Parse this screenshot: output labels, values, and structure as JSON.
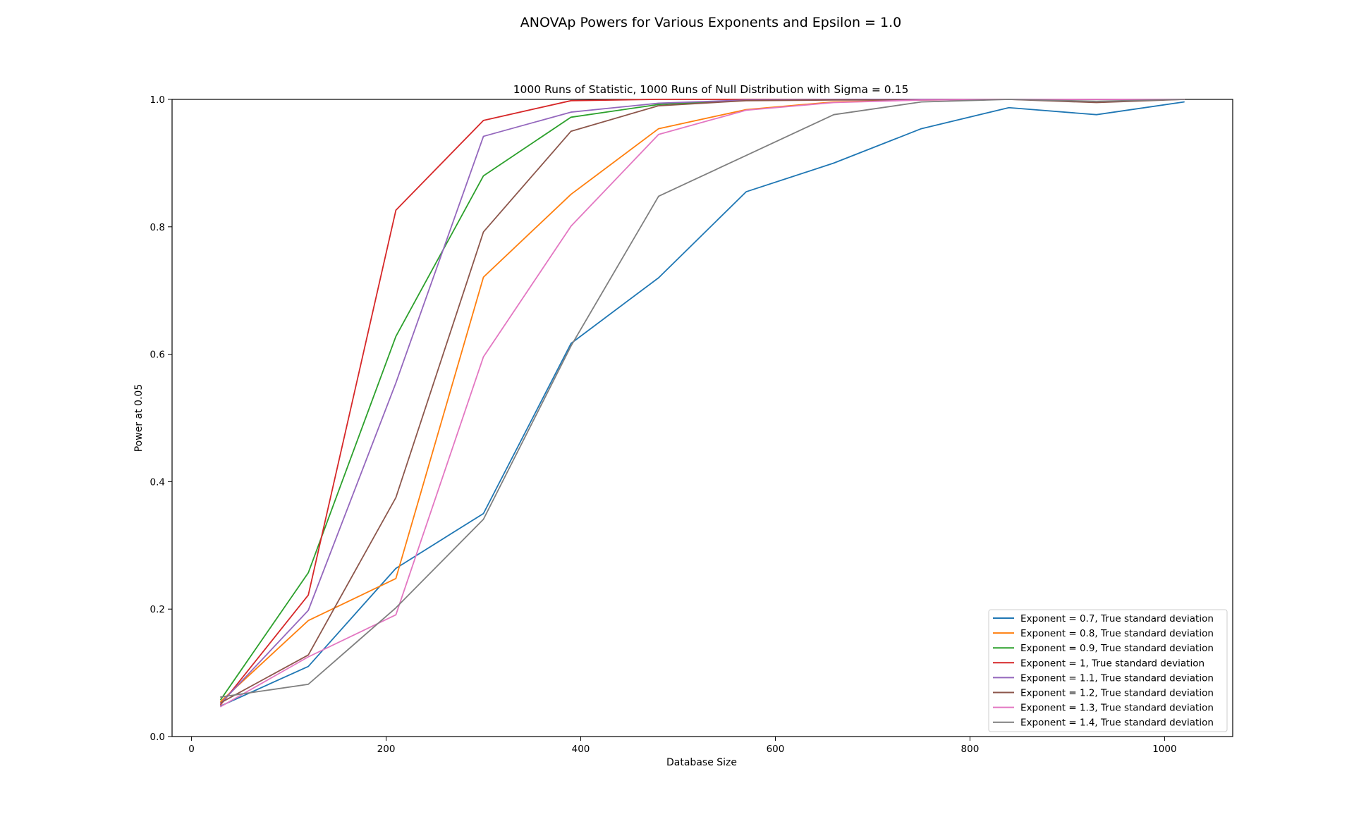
{
  "figure": {
    "suptitle": "ANOVAp Powers for Various Exponents and Epsilon = 1.0"
  },
  "chart_data": {
    "type": "line",
    "title": "1000 Runs of Statistic, 1000 Runs of Null Distribution with Sigma = 0.15",
    "xlabel": "Database Size",
    "ylabel": "Power at 0.05",
    "xlim": [
      -20,
      1070
    ],
    "ylim": [
      0,
      1.0
    ],
    "xticks": [
      0,
      200,
      400,
      600,
      800,
      1000
    ],
    "xtick_labels": [
      "0",
      "200",
      "400",
      "600",
      "800",
      "1000"
    ],
    "yticks": [
      0.0,
      0.2,
      0.4,
      0.6,
      0.8,
      1.0
    ],
    "ytick_labels": [
      "0.0",
      "0.2",
      "0.4",
      "0.6",
      "0.8",
      "1.0"
    ],
    "grid": false,
    "legend_position": "lower-right",
    "x": [
      30,
      120,
      210,
      300,
      390,
      480,
      570,
      660,
      750,
      840,
      930,
      1020
    ],
    "series": [
      {
        "name": "Exponent = 0.7, True standard deviation",
        "color": "#1f77b4",
        "values": [
          0.048,
          0.11,
          0.264,
          0.35,
          0.617,
          0.72,
          0.855,
          0.9,
          0.954,
          0.987,
          0.976,
          0.996
        ]
      },
      {
        "name": "Exponent = 0.8, True standard deviation",
        "color": "#ff7f0e",
        "values": [
          0.055,
          0.182,
          0.248,
          0.721,
          0.851,
          0.954,
          0.984,
          0.996,
          0.999,
          1.0,
          1.0,
          1.0
        ]
      },
      {
        "name": "Exponent = 0.9, True standard deviation",
        "color": "#2ca02c",
        "values": [
          0.058,
          0.257,
          0.628,
          0.88,
          0.972,
          0.992,
          0.999,
          1.0,
          1.0,
          1.0,
          1.0,
          1.0
        ]
      },
      {
        "name": "Exponent = 1, True standard deviation",
        "color": "#d62728",
        "values": [
          0.05,
          0.222,
          0.826,
          0.967,
          0.998,
          1.0,
          1.0,
          1.0,
          1.0,
          1.0,
          1.0,
          1.0
        ]
      },
      {
        "name": "Exponent = 1.1, True standard deviation",
        "color": "#9467bd",
        "values": [
          0.052,
          0.198,
          0.555,
          0.942,
          0.98,
          0.994,
          0.999,
          1.0,
          1.0,
          1.0,
          1.0,
          1.0
        ]
      },
      {
        "name": "Exponent = 1.2, True standard deviation",
        "color": "#8c564b",
        "values": [
          0.053,
          0.128,
          0.375,
          0.792,
          0.95,
          0.99,
          0.998,
          0.999,
          0.999,
          1.0,
          0.995,
          1.0
        ]
      },
      {
        "name": "Exponent = 1.3, True standard deviation",
        "color": "#e377c2",
        "values": [
          0.047,
          0.125,
          0.191,
          0.596,
          0.801,
          0.945,
          0.983,
          0.995,
          0.999,
          1.0,
          1.0,
          1.0
        ]
      },
      {
        "name": "Exponent = 1.4, True standard deviation",
        "color": "#7f7f7f",
        "values": [
          0.062,
          0.082,
          0.202,
          0.341,
          0.613,
          0.848,
          0.912,
          0.976,
          0.996,
          1.0,
          0.997,
          1.0
        ]
      }
    ]
  }
}
